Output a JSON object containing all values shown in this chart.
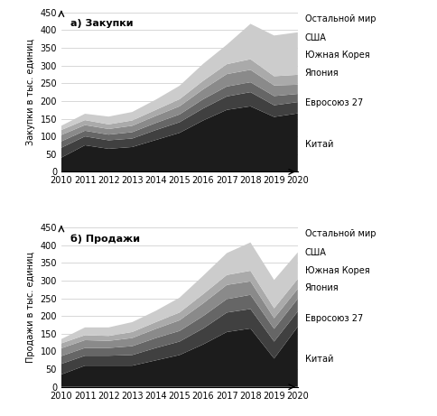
{
  "years": [
    2010,
    2011,
    2012,
    2013,
    2014,
    2015,
    2016,
    2017,
    2018,
    2019,
    2020
  ],
  "purchases": {
    "Китай": [
      40,
      75,
      65,
      70,
      90,
      110,
      145,
      175,
      185,
      155,
      165
    ],
    "Евросоюз 27": [
      28,
      25,
      24,
      24,
      28,
      30,
      34,
      38,
      40,
      33,
      32
    ],
    "Япония": [
      18,
      16,
      16,
      18,
      20,
      22,
      26,
      28,
      28,
      26,
      23
    ],
    "Южная Корея": [
      18,
      16,
      16,
      18,
      20,
      23,
      28,
      35,
      35,
      30,
      26
    ],
    "США": [
      14,
      14,
      13,
      15,
      17,
      20,
      24,
      28,
      30,
      26,
      28
    ],
    "Остальной мир": [
      12,
      18,
      22,
      24,
      29,
      38,
      48,
      55,
      100,
      115,
      120
    ]
  },
  "sales": {
    "Китай": [
      35,
      60,
      60,
      60,
      75,
      90,
      120,
      155,
      165,
      80,
      170
    ],
    "Евросоюз 27": [
      30,
      28,
      28,
      30,
      35,
      38,
      45,
      55,
      55,
      48,
      43
    ],
    "Япония": [
      22,
      22,
      22,
      25,
      28,
      30,
      35,
      38,
      40,
      36,
      36
    ],
    "Южная Корея": [
      22,
      22,
      20,
      23,
      26,
      30,
      36,
      40,
      38,
      30,
      28
    ],
    "США": [
      14,
      14,
      14,
      17,
      19,
      22,
      26,
      28,
      30,
      28,
      28
    ],
    "Остальной мир": [
      12,
      22,
      24,
      28,
      32,
      42,
      52,
      62,
      80,
      80,
      75
    ]
  },
  "colors": [
    "#1c1c1c",
    "#404040",
    "#666666",
    "#8a8a8a",
    "#aaaaaa",
    "#cccccc"
  ],
  "labels": [
    "Китай",
    "Евросоюз 27",
    "Япония",
    "Южная Корея",
    "США",
    "Остальной мир"
  ],
  "legend_order": [
    "Остальной мир",
    "США",
    "Южная Корея",
    "Япония",
    "Евросоюз 27",
    "Китай"
  ],
  "ylabel_a": "Закупки в тыс. единиц",
  "ylabel_b": "Продажи в тыс. единиц",
  "title_a": "а) Закупки",
  "title_b": "б) Продажи",
  "ylim": [
    0,
    450
  ],
  "yticks": [
    0,
    50,
    100,
    150,
    200,
    250,
    300,
    350,
    400,
    450
  ],
  "font_size_tick": 7,
  "font_size_label": 7,
  "font_size_title": 8,
  "font_size_legend": 7
}
